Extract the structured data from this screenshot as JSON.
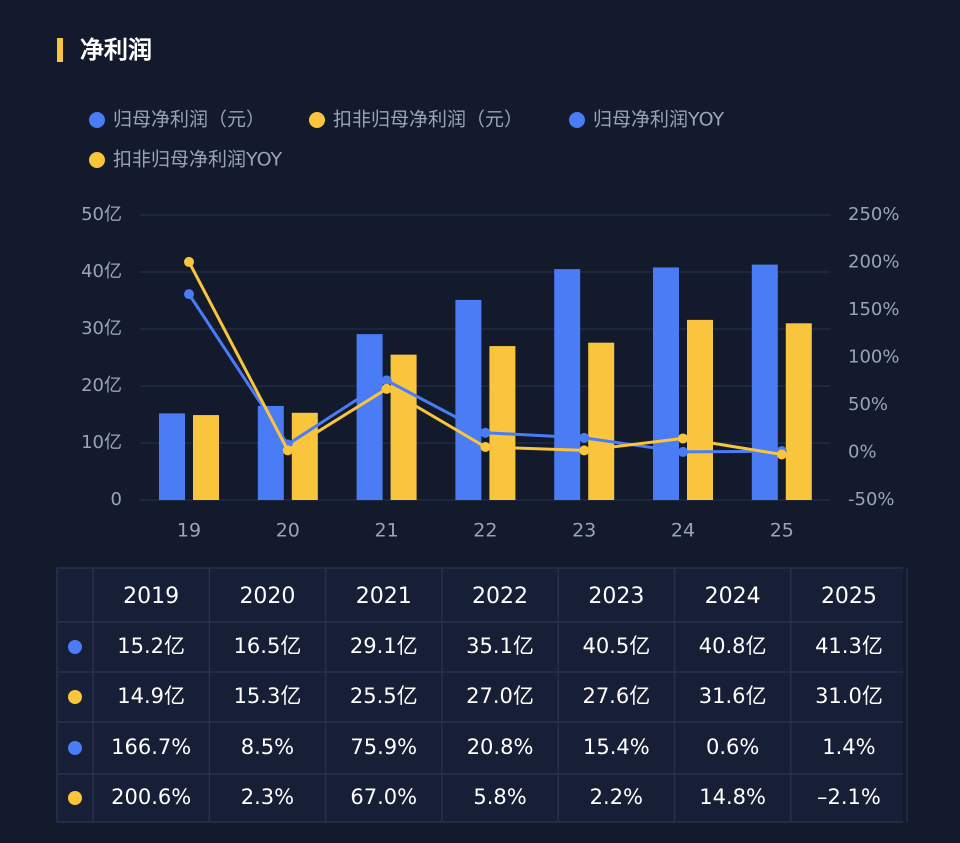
{
  "header": {
    "title": "净利润"
  },
  "chart_data": {
    "type": "bar",
    "categories": [
      "19",
      "20",
      "21",
      "22",
      "23",
      "24",
      "25"
    ],
    "series": [
      {
        "name": "归母净利润（元）",
        "type": "bar",
        "color": "#4a7cf5",
        "values": [
          15.2,
          16.5,
          29.1,
          35.1,
          40.5,
          40.8,
          41.3
        ],
        "value_labels": [
          "15.2亿",
          "16.5亿",
          "29.1亿",
          "35.1亿",
          "40.5亿",
          "40.8亿",
          "41.3亿"
        ]
      },
      {
        "name": "扣非归母净利润（元）",
        "type": "bar",
        "color": "#f9c53c",
        "values": [
          14.9,
          15.3,
          25.5,
          27.0,
          27.6,
          31.6,
          31.0
        ],
        "value_labels": [
          "14.9亿",
          "15.3亿",
          "25.5亿",
          "27.0亿",
          "27.6亿",
          "31.6亿",
          "31.0亿"
        ]
      },
      {
        "name": "归母净利润YOY",
        "type": "line",
        "axis": "y2",
        "color": "#4a7cf5",
        "values": [
          166.7,
          8.5,
          75.9,
          20.8,
          15.4,
          0.6,
          1.4
        ],
        "value_labels": [
          "166.7%",
          "8.5%",
          "75.9%",
          "20.8%",
          "15.4%",
          "0.6%",
          "1.4%"
        ]
      },
      {
        "name": "扣非归母净利润YOY",
        "type": "line",
        "axis": "y2",
        "color": "#f9c53c",
        "values": [
          200.6,
          2.3,
          67.0,
          5.8,
          2.2,
          14.8,
          -2.1
        ],
        "value_labels": [
          "200.6%",
          "2.3%",
          "67.0%",
          "5.8%",
          "2.2%",
          "14.8%",
          "–2.1%"
        ]
      }
    ],
    "ylim": [
      0,
      50
    ],
    "yticks": [
      0,
      {
        "value": 10,
        "label": "10亿"
      },
      {
        "value": 20,
        "label": "20亿"
      },
      {
        "value": 30,
        "label": "30亿"
      },
      {
        "value": 40,
        "label": "40亿"
      },
      {
        "value": 50,
        "label": "50亿"
      }
    ],
    "y2lim": [
      -50,
      250
    ],
    "y2ticks": [
      {
        "value": -50,
        "label": "-50%"
      },
      {
        "value": 0,
        "label": "0%"
      },
      {
        "value": 50,
        "label": "50%"
      },
      {
        "value": 100,
        "label": "100%"
      },
      {
        "value": 150,
        "label": "150%"
      },
      {
        "value": 200,
        "label": "200%"
      },
      {
        "value": 250,
        "label": "250%"
      }
    ],
    "grid": true
  },
  "table": {
    "columns": [
      "2019",
      "2020",
      "2021",
      "2022",
      "2023",
      "2024",
      "2025"
    ]
  }
}
